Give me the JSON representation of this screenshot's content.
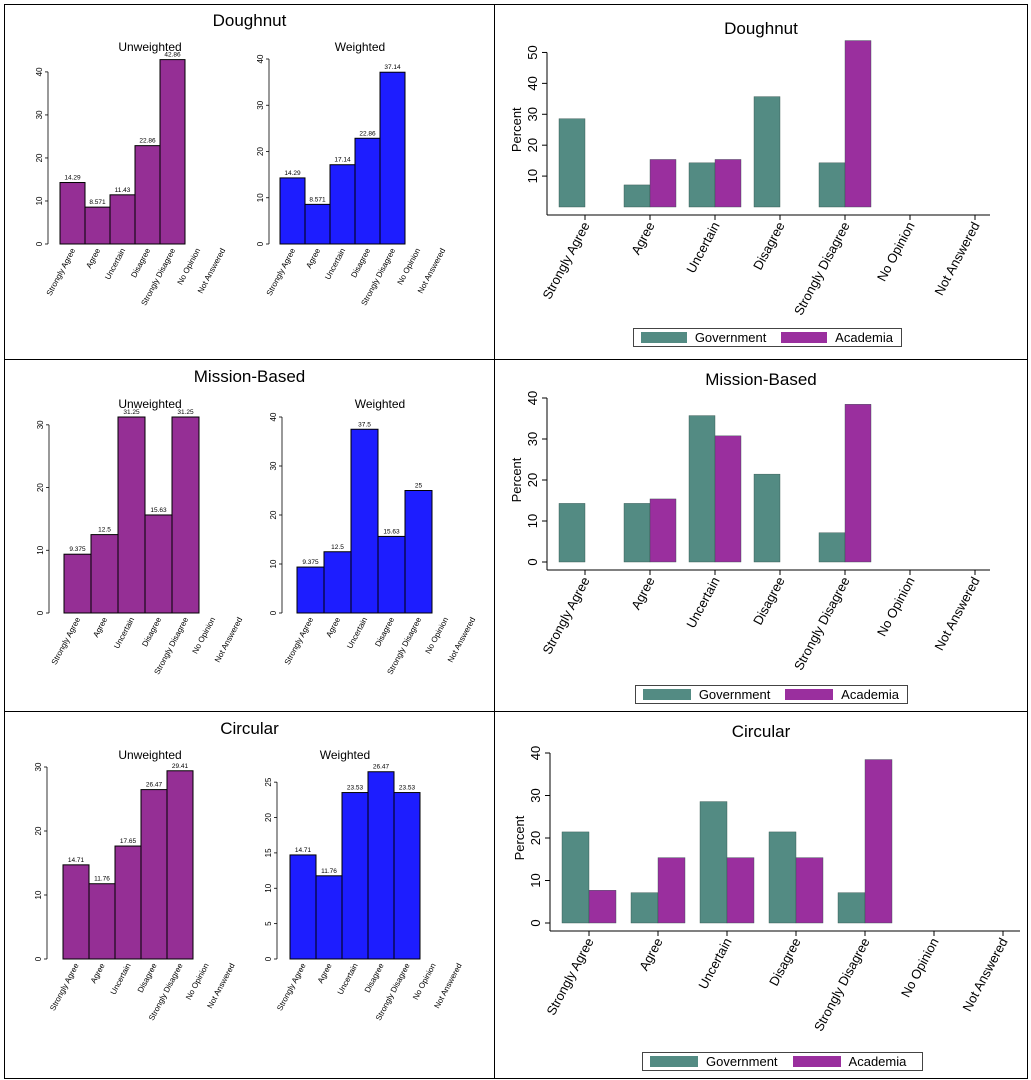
{
  "panel_titles": [
    "Doughnut",
    "Mission-Based",
    "Circular"
  ],
  "subtitles": {
    "unweighted": "Unweighted",
    "weighted": "Weighted"
  },
  "legend": {
    "government": "Government",
    "academia": "Academia"
  },
  "colors": {
    "purple": "#952f95",
    "blue": "#1d1dff",
    "teal": "#538b83",
    "magenta": "#9a2f9e"
  },
  "chart_data": [
    {
      "type": "bar",
      "title": "Doughnut",
      "subtitle": "Unweighted",
      "categories": [
        "Strongly Agree",
        "Agree",
        "Uncertain",
        "Disagree",
        "Strongly Disagree",
        "No Opinion",
        "Not Answered"
      ],
      "values": [
        14.29,
        8.571,
        11.43,
        22.86,
        42.86,
        0,
        0
      ],
      "data_labels": [
        "14.29",
        "8.571",
        "11.43",
        "22.86",
        "42.86",
        "",
        ""
      ],
      "yticks": [
        0,
        10,
        20,
        30,
        40
      ],
      "ylim": [
        0,
        43
      ],
      "color": "#952f95"
    },
    {
      "type": "bar",
      "title": "Doughnut",
      "subtitle": "Weighted",
      "categories": [
        "Strongly Agree",
        "Agree",
        "Uncertain",
        "Disagree",
        "Strongly Disagree",
        "No Opinion",
        "Not Answered"
      ],
      "values": [
        14.29,
        8.571,
        17.14,
        22.86,
        37.14,
        0,
        0
      ],
      "data_labels": [
        "14.29",
        "8.571",
        "17.14",
        "22.86",
        "37.14",
        "",
        ""
      ],
      "yticks": [
        0,
        10,
        20,
        30,
        40
      ],
      "ylim": [
        0,
        40
      ],
      "color": "#1d1dff"
    },
    {
      "type": "bar",
      "title": "Doughnut",
      "categories": [
        "Strongly Agree",
        "Agree",
        "Uncertain",
        "Disagree",
        "Strongly Disagree",
        "No Opinion",
        "Not Answered"
      ],
      "ylabel": "Percent",
      "series": [
        {
          "name": "Government",
          "values": [
            28.57,
            7.14,
            14.29,
            35.71,
            14.29,
            0,
            0
          ]
        },
        {
          "name": "Academia",
          "values": [
            0,
            15.38,
            15.38,
            0,
            53.85,
            0,
            0
          ]
        }
      ],
      "yticks": [
        10,
        20,
        30,
        40,
        50
      ],
      "ylim": [
        0,
        55
      ],
      "legend": "bottom"
    },
    {
      "type": "bar",
      "title": "Mission-Based",
      "subtitle": "Unweighted",
      "categories": [
        "Strongly Agree",
        "Agree",
        "Uncertain",
        "Disagree",
        "Strongly Disagree",
        "No Opinion",
        "Not Answered"
      ],
      "values": [
        9.375,
        12.5,
        31.25,
        15.63,
        31.25,
        0,
        0
      ],
      "data_labels": [
        "9.375",
        "12.5",
        "31.25",
        "15.63",
        "31.25",
        "",
        ""
      ],
      "yticks": [
        0,
        10,
        20,
        30
      ],
      "ylim": [
        0,
        31.25
      ],
      "color": "#952f95"
    },
    {
      "type": "bar",
      "title": "Mission-Based",
      "subtitle": "Weighted",
      "categories": [
        "Strongly Agree",
        "Agree",
        "Uncertain",
        "Disagree",
        "Strongly Disagree",
        "No Opinion",
        "Not Answered"
      ],
      "values": [
        9.375,
        12.5,
        37.5,
        15.63,
        25,
        0,
        0
      ],
      "data_labels": [
        "9.375",
        "12.5",
        "37.5",
        "15.63",
        "25",
        "",
        ""
      ],
      "yticks": [
        0,
        10,
        20,
        30,
        40
      ],
      "ylim": [
        0,
        40
      ],
      "color": "#1d1dff"
    },
    {
      "type": "bar",
      "title": "Mission-Based",
      "categories": [
        "Strongly Agree",
        "Agree",
        "Uncertain",
        "Disagree",
        "Strongly Disagree",
        "No Opinion",
        "Not Answered"
      ],
      "ylabel": "Percent",
      "series": [
        {
          "name": "Government",
          "values": [
            14.29,
            14.29,
            35.71,
            21.43,
            7.14,
            0,
            0
          ]
        },
        {
          "name": "Academia",
          "values": [
            0,
            15.38,
            30.77,
            0,
            38.46,
            0,
            0
          ]
        }
      ],
      "yticks": [
        0,
        10,
        20,
        30,
        40
      ],
      "ylim": [
        0,
        40
      ],
      "legend": "bottom"
    },
    {
      "type": "bar",
      "title": "Circular",
      "subtitle": "Unweighted",
      "categories": [
        "Strongly Agree",
        "Agree",
        "Uncertain",
        "Disagree",
        "Strongly Disagree",
        "No Opinion",
        "Not Answered"
      ],
      "values": [
        14.71,
        11.76,
        17.65,
        26.47,
        29.41,
        0,
        0
      ],
      "data_labels": [
        "14.71",
        "11.76",
        "17.65",
        "26.47",
        "29.41",
        "",
        ""
      ],
      "yticks": [
        0,
        10,
        20,
        30
      ],
      "ylim": [
        0,
        30
      ],
      "color": "#952f95"
    },
    {
      "type": "bar",
      "title": "Circular",
      "subtitle": "Weighted",
      "categories": [
        "Strongly Agree",
        "Agree",
        "Uncertain",
        "Disagree",
        "Strongly Disagree",
        "No Opinion",
        "Not Answered"
      ],
      "values": [
        14.71,
        11.76,
        23.53,
        26.47,
        23.53,
        0,
        0
      ],
      "data_labels": [
        "14.71",
        "11.76",
        "23.53",
        "26.47",
        "23.53",
        "",
        ""
      ],
      "yticks": [
        0,
        5,
        10,
        15,
        20,
        25
      ],
      "ylim": [
        0,
        27
      ],
      "color": "#1d1dff"
    },
    {
      "type": "bar",
      "title": "Circular",
      "categories": [
        "Strongly Agree",
        "Agree",
        "Uncertain",
        "Disagree",
        "Strongly Disagree",
        "No Opinion",
        "Not Answered"
      ],
      "ylabel": "Percent",
      "series": [
        {
          "name": "Government",
          "values": [
            21.43,
            7.14,
            28.57,
            21.43,
            7.14,
            0,
            0
          ]
        },
        {
          "name": "Academia",
          "values": [
            7.69,
            15.38,
            15.38,
            15.38,
            38.46,
            0,
            0
          ]
        }
      ],
      "yticks": [
        0,
        10,
        20,
        30,
        40
      ],
      "ylim": [
        0,
        40
      ],
      "legend": "bottom"
    }
  ]
}
